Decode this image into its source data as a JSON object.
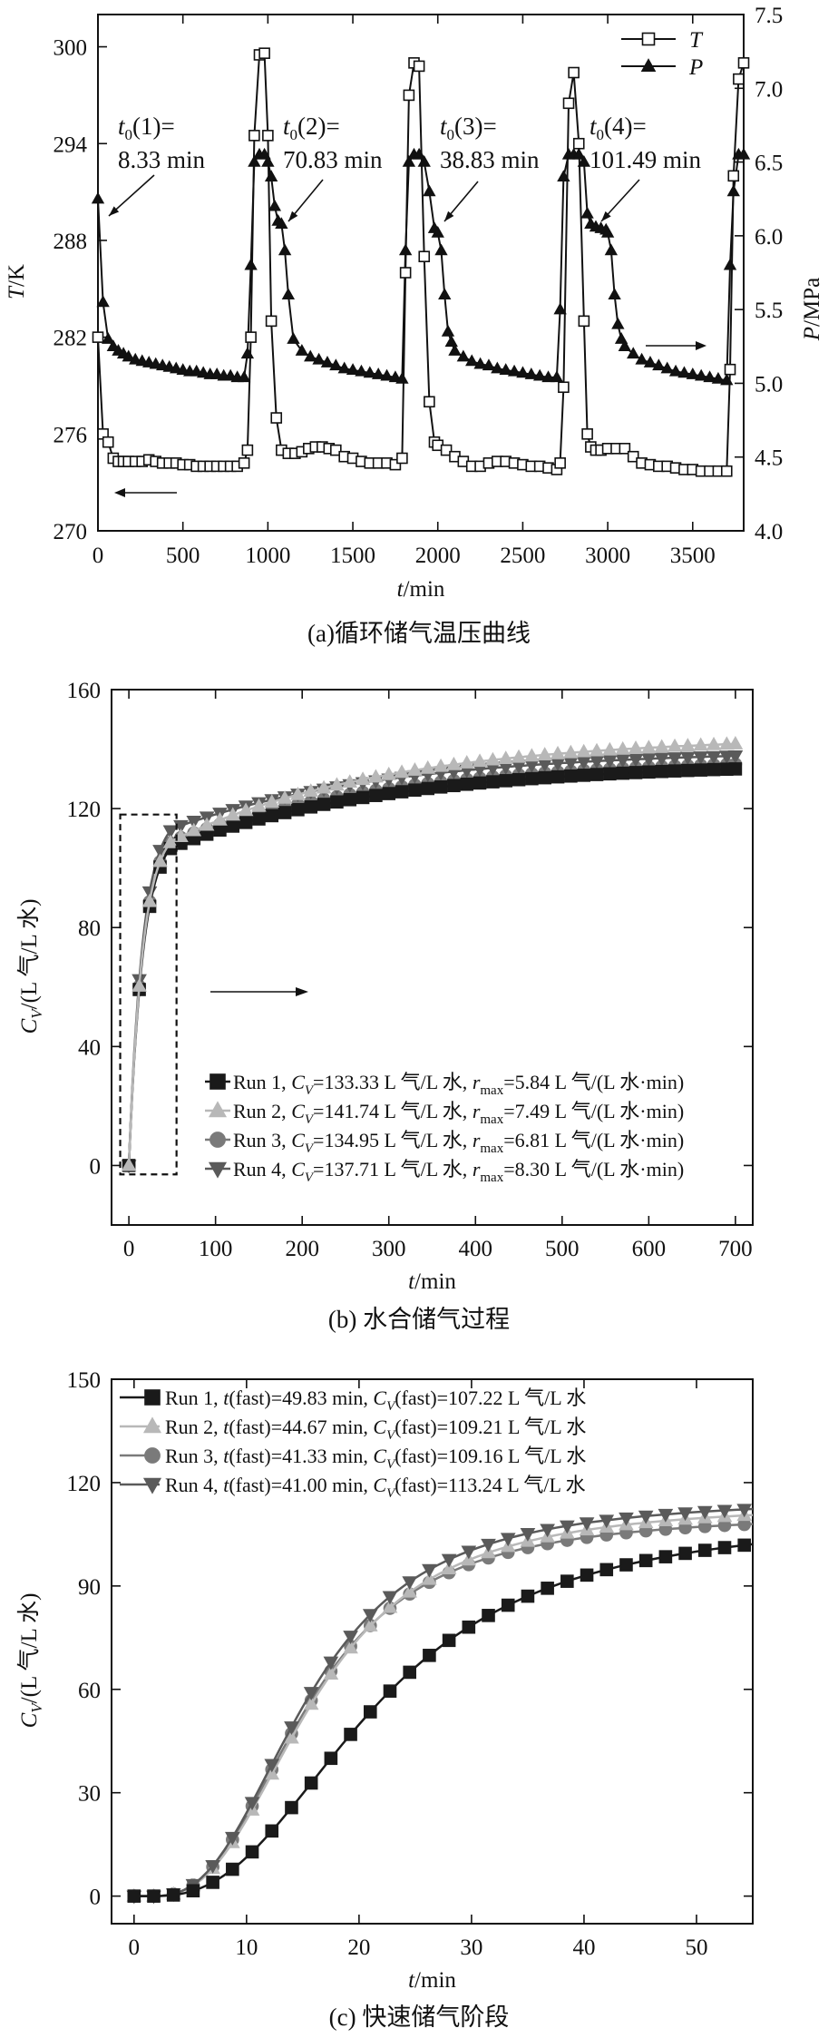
{
  "chart_data": [
    {
      "type": "line",
      "caption": "(a)循环储气温压曲线",
      "xlabel": "t/min",
      "ylabel_left": "T/K",
      "ylabel_right": "P/MPa",
      "xlim": [
        0,
        3800
      ],
      "ylim_left": [
        270,
        302
      ],
      "ylim_right": [
        4.0,
        7.5
      ],
      "xticks": [
        0,
        500,
        1000,
        1500,
        2000,
        2500,
        3000,
        3500
      ],
      "yticks_left": [
        270,
        276,
        282,
        288,
        294,
        300
      ],
      "yticks_right": [
        4.0,
        4.5,
        5.0,
        5.5,
        6.0,
        6.5,
        7.0,
        7.5
      ],
      "legend": {
        "position": "top-right",
        "entries": [
          {
            "name": "T",
            "marker": "open-square"
          },
          {
            "name": "P",
            "marker": "filled-triangle"
          }
        ]
      },
      "annotations": [
        {
          "line1": "t0(1)=",
          "line2": "8.33 min"
        },
        {
          "line1": "t0(2)=",
          "line2": "70.83 min"
        },
        {
          "line1": "t0(3)=",
          "line2": "38.83 min"
        },
        {
          "line1": "t0(4)=",
          "line2": "101.49 min"
        }
      ],
      "series": [
        {
          "name": "T",
          "axis": "left",
          "x": [
            0,
            30,
            60,
            90,
            120,
            150,
            180,
            220,
            260,
            300,
            340,
            380,
            420,
            460,
            500,
            540,
            580,
            620,
            660,
            700,
            740,
            780,
            820,
            860,
            880,
            900,
            920,
            950,
            980,
            1000,
            1020,
            1050,
            1080,
            1120,
            1160,
            1200,
            1240,
            1280,
            1320,
            1360,
            1400,
            1450,
            1500,
            1550,
            1600,
            1650,
            1700,
            1750,
            1790,
            1810,
            1830,
            1860,
            1890,
            1920,
            1950,
            1980,
            2000,
            2050,
            2100,
            2150,
            2200,
            2250,
            2300,
            2350,
            2400,
            2450,
            2500,
            2550,
            2600,
            2650,
            2700,
            2720,
            2740,
            2770,
            2800,
            2830,
            2860,
            2880,
            2900,
            2930,
            2960,
            3000,
            3050,
            3100,
            3150,
            3200,
            3250,
            3300,
            3350,
            3400,
            3450,
            3500,
            3550,
            3600,
            3650,
            3700,
            3720,
            3740,
            3770,
            3800
          ],
          "y": [
            282,
            276,
            275.5,
            274.5,
            274.3,
            274.3,
            274.3,
            274.3,
            274.3,
            274.4,
            274.3,
            274.2,
            274.2,
            274.2,
            274.1,
            274.1,
            274.0,
            274.0,
            274.0,
            274.0,
            274.0,
            274.0,
            274.0,
            274.2,
            275,
            282,
            294.5,
            299.5,
            299.6,
            294.5,
            283,
            277,
            275,
            274.8,
            274.8,
            274.9,
            275.1,
            275.2,
            275.2,
            275.1,
            275.0,
            274.6,
            274.5,
            274.3,
            274.2,
            274.2,
            274.2,
            274.1,
            274.5,
            286,
            297,
            299,
            298.8,
            287,
            278,
            275.5,
            275.3,
            275.0,
            274.6,
            274.3,
            274.0,
            274.0,
            274.2,
            274.3,
            274.3,
            274.2,
            274.1,
            274.0,
            274.0,
            273.9,
            273.8,
            274.2,
            278.9,
            296.5,
            298.4,
            294,
            283,
            276,
            275.2,
            275.0,
            275.0,
            275.1,
            275.1,
            275.1,
            274.6,
            274.2,
            274.1,
            274.0,
            274.0,
            273.9,
            273.8,
            273.8,
            273.7,
            273.7,
            273.7,
            273.7,
            280,
            292,
            298,
            299
          ]
        },
        {
          "name": "P",
          "axis": "right",
          "x": [
            0,
            30,
            60,
            90,
            120,
            150,
            180,
            220,
            260,
            300,
            340,
            380,
            420,
            460,
            500,
            540,
            580,
            620,
            660,
            700,
            740,
            780,
            820,
            860,
            880,
            900,
            920,
            950,
            980,
            1000,
            1020,
            1040,
            1060,
            1080,
            1100,
            1120,
            1150,
            1200,
            1250,
            1300,
            1350,
            1400,
            1450,
            1500,
            1550,
            1600,
            1650,
            1700,
            1750,
            1790,
            1810,
            1830,
            1860,
            1890,
            1920,
            1950,
            1980,
            2000,
            2020,
            2040,
            2060,
            2080,
            2100,
            2150,
            2200,
            2250,
            2300,
            2350,
            2400,
            2450,
            2500,
            2550,
            2600,
            2650,
            2700,
            2720,
            2740,
            2770,
            2800,
            2830,
            2860,
            2880,
            2900,
            2930,
            2960,
            2990,
            3000,
            3020,
            3040,
            3060,
            3080,
            3100,
            3150,
            3200,
            3250,
            3300,
            3350,
            3400,
            3450,
            3500,
            3550,
            3600,
            3650,
            3700,
            3720,
            3740,
            3770,
            3800
          ],
          "y": [
            6.25,
            5.55,
            5.3,
            5.25,
            5.22,
            5.2,
            5.18,
            5.16,
            5.15,
            5.14,
            5.13,
            5.12,
            5.11,
            5.1,
            5.09,
            5.08,
            5.08,
            5.07,
            5.06,
            5.06,
            5.05,
            5.05,
            5.04,
            5.04,
            5.2,
            5.8,
            6.5,
            6.55,
            6.55,
            6.5,
            6.4,
            6.2,
            6.1,
            6.08,
            5.9,
            5.6,
            5.3,
            5.22,
            5.18,
            5.16,
            5.14,
            5.12,
            5.1,
            5.09,
            5.08,
            5.07,
            5.06,
            5.05,
            5.04,
            5.03,
            5.9,
            6.5,
            6.55,
            6.55,
            6.5,
            6.3,
            6.05,
            6.02,
            5.9,
            5.6,
            5.35,
            5.28,
            5.22,
            5.18,
            5.15,
            5.13,
            5.12,
            5.1,
            5.09,
            5.08,
            5.07,
            5.06,
            5.05,
            5.04,
            5.04,
            5.5,
            6.4,
            6.55,
            6.55,
            6.55,
            6.5,
            6.15,
            6.08,
            6.06,
            6.05,
            6.04,
            6.02,
            5.9,
            5.6,
            5.4,
            5.3,
            5.25,
            5.2,
            5.16,
            5.14,
            5.12,
            5.1,
            5.08,
            5.07,
            5.06,
            5.05,
            5.04,
            5.03,
            5.02,
            5.8,
            6.3,
            6.55,
            6.55
          ]
        }
      ]
    },
    {
      "type": "line",
      "caption": "(b) 水合储气过程",
      "xlabel": "t/min",
      "ylabel": "C_V/(L 气/L 水)",
      "xlim": [
        -20,
        720
      ],
      "ylim": [
        -20,
        160
      ],
      "xticks": [
        0,
        100,
        200,
        300,
        400,
        500,
        600,
        700
      ],
      "yticks": [
        0,
        40,
        80,
        120,
        160
      ],
      "legend": {
        "position": "bottom-right"
      },
      "series": [
        {
          "name": "Run 1",
          "legend_parts": [
            "Run 1, ",
            "C",
            "V",
            "=133.33 L 气/L 水, ",
            "r",
            "max",
            "=5.84 L 气/(L 水·min)"
          ],
          "color": "#1a1a1a",
          "marker": "square",
          "x_end": 700,
          "final": 133.33,
          "fast_t": 49.83,
          "fast_c": 107.22
        },
        {
          "name": "Run 2",
          "legend_parts": [
            "Run 2, ",
            "C",
            "V",
            "=141.74 L 气/L 水, ",
            "r",
            "max",
            "=7.49 L 气/(L 水·min)"
          ],
          "color": "#b8b8b8",
          "marker": "triangle-up",
          "x_end": 700,
          "final": 141.74,
          "fast_t": 44.67,
          "fast_c": 109.21
        },
        {
          "name": "Run 3",
          "legend_parts": [
            "Run 3, ",
            "C",
            "V",
            "=134.95 L 气/L 水, ",
            "r",
            "max",
            "=6.81 L 气/(L 水·min)"
          ],
          "color": "#7a7a7a",
          "marker": "circle",
          "x_end": 700,
          "final": 134.95,
          "fast_t": 41.33,
          "fast_c": 109.16
        },
        {
          "name": "Run 4",
          "legend_parts": [
            "Run 4, ",
            "C",
            "V",
            "=137.71 L 气/L 水, ",
            "r",
            "max",
            "=8.30 L 气/(L 水·min)"
          ],
          "color": "#5a5a5a",
          "marker": "triangle-down",
          "x_end": 700,
          "final": 137.71,
          "fast_t": 41.0,
          "fast_c": 113.24
        }
      ]
    },
    {
      "type": "line",
      "caption": "(c) 快速储气阶段",
      "xlabel": "t/min",
      "ylabel": "C_V/(L 气/L 水)",
      "xlim": [
        -2,
        55
      ],
      "ylim": [
        -8,
        150
      ],
      "xticks": [
        0,
        10,
        20,
        30,
        40,
        50
      ],
      "yticks": [
        0,
        30,
        60,
        90,
        120,
        150
      ],
      "legend": {
        "position": "top-left"
      },
      "series": [
        {
          "name": "Run 1",
          "legend_parts": [
            "Run 1, ",
            "t",
            "(fast)=49.83 min, ",
            "C",
            "V",
            "(fast)=107.22 L 气/L 水"
          ],
          "color": "#1a1a1a",
          "marker": "square",
          "tau": 20.0,
          "k": 4.1,
          "plateau": 110.5,
          "x": [
            0,
            1.75,
            3.5,
            5.25,
            7,
            8.75,
            10.5,
            12.25,
            14,
            15.75,
            17.5,
            19.25,
            21,
            22.75,
            24.5,
            26.25,
            28,
            29.75,
            31.5,
            33.25,
            35,
            36.75,
            38.5,
            40.25,
            42,
            43.75,
            45.5,
            47.25,
            49,
            50.75,
            52.5,
            54.25
          ]
        },
        {
          "name": "Run 2",
          "legend_parts": [
            "Run 2, ",
            "t",
            "(fast)=44.67 min, ",
            "C",
            "V",
            "(fast)=109.21 L 气/L 水"
          ],
          "color": "#b8b8b8",
          "marker": "triangle-up",
          "tau": 14.5,
          "k": 4.3,
          "plateau": 114.0,
          "x": [
            0,
            1.75,
            3.5,
            5.25,
            7,
            8.75,
            10.5,
            12.25,
            14,
            15.75,
            17.5,
            19.25,
            21,
            22.75,
            24.5,
            26.25,
            28,
            29.75,
            31.5,
            33.25,
            35,
            36.75,
            38.5,
            40.25,
            42,
            43.75,
            45.5,
            47.25,
            49,
            50.75,
            52.5,
            54.25
          ]
        },
        {
          "name": "Run 3",
          "legend_parts": [
            "Run 3, ",
            "t",
            "(fast)=41.33 min, ",
            "C",
            "V",
            "(fast)=109.16 L 气/L 水"
          ],
          "color": "#7a7a7a",
          "marker": "circle",
          "tau": 14.0,
          "k": 4.3,
          "plateau": 111.0,
          "x": [
            0,
            1.75,
            3.5,
            5.25,
            7,
            8.75,
            10.5,
            12.25,
            14,
            15.75,
            17.5,
            19.25,
            21,
            22.75,
            24.5,
            26.25,
            28,
            29.75,
            31.5,
            33.25,
            35,
            36.75,
            38.5,
            40.25,
            42,
            43.75,
            45.5,
            47.25,
            49,
            50.75,
            52.5,
            54.25
          ]
        },
        {
          "name": "Run 4",
          "legend_parts": [
            "Run 4, ",
            "t",
            "(fast)=41.00 min, ",
            "C",
            "V",
            "(fast)=113.24 L 气/L 水"
          ],
          "color": "#5a5a5a",
          "marker": "triangle-down",
          "tau": 14.0,
          "k": 4.3,
          "plateau": 115.5,
          "x": [
            0,
            1.75,
            3.5,
            5.25,
            7,
            8.75,
            10.5,
            12.25,
            14,
            15.75,
            17.5,
            19.25,
            21,
            22.75,
            24.5,
            26.25,
            28,
            29.75,
            31.5,
            33.25,
            35,
            36.75,
            38.5,
            40.25,
            42,
            43.75,
            45.5,
            47.25,
            49,
            50.75,
            52.5,
            54.25
          ]
        }
      ]
    }
  ]
}
